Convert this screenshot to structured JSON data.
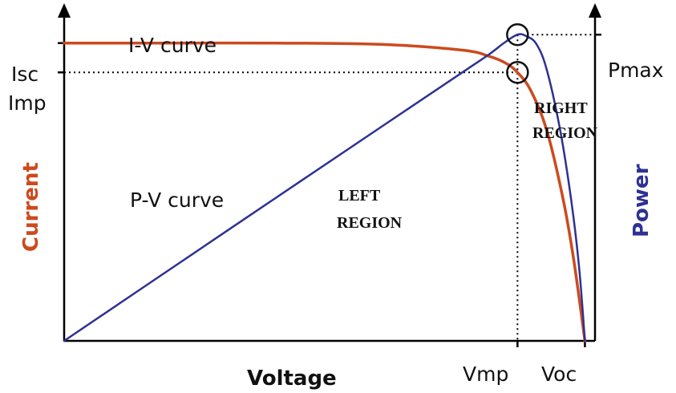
{
  "chart_data": {
    "type": "line",
    "xlabel": "Voltage",
    "ylabel_left": "Current",
    "ylabel_right": "Power",
    "x_ticks": {
      "vmp": "Vmp",
      "voc": "Voc"
    },
    "y_left_ticks": {
      "isc": "Isc",
      "imp": "Imp"
    },
    "y_right_ticks": {
      "pmax": "Pmax"
    },
    "xlim": [
      0,
      1
    ],
    "ylim": [
      0,
      1
    ],
    "points": {
      "vmp": 0.854,
      "voc": 0.981,
      "isc": 0.884,
      "imp": 0.797,
      "pmax": 0.909
    },
    "series": [
      {
        "name": "I-V curve",
        "color": "#cc4a1e",
        "x": [
          0,
          0.2,
          0.4,
          0.6,
          0.75,
          0.8,
          0.83,
          0.854,
          0.88,
          0.91,
          0.94,
          0.96,
          0.981
        ],
        "y": [
          0.884,
          0.884,
          0.884,
          0.88,
          0.863,
          0.845,
          0.826,
          0.797,
          0.74,
          0.62,
          0.42,
          0.24,
          0.0
        ]
      },
      {
        "name": "P-V curve",
        "color": "#2e3192",
        "x": [
          0,
          0.2,
          0.4,
          0.6,
          0.75,
          0.8,
          0.83,
          0.854,
          0.87,
          0.89,
          0.91,
          0.935,
          0.955,
          0.97,
          0.981
        ],
        "y": [
          0,
          0.213,
          0.426,
          0.638,
          0.797,
          0.85,
          0.886,
          0.909,
          0.905,
          0.88,
          0.8,
          0.62,
          0.42,
          0.22,
          0.0
        ]
      }
    ],
    "annotations": {
      "iv_label": "I-V curve",
      "pv_label": "P-V curve",
      "left_region_1": "LEFT",
      "left_region_2": "REGION",
      "right_region_1": "RIGHT",
      "right_region_2": "REGION"
    },
    "axis_colors": {
      "current": "#cc4a1e",
      "power": "#2e3192",
      "axis": "#000000"
    }
  }
}
